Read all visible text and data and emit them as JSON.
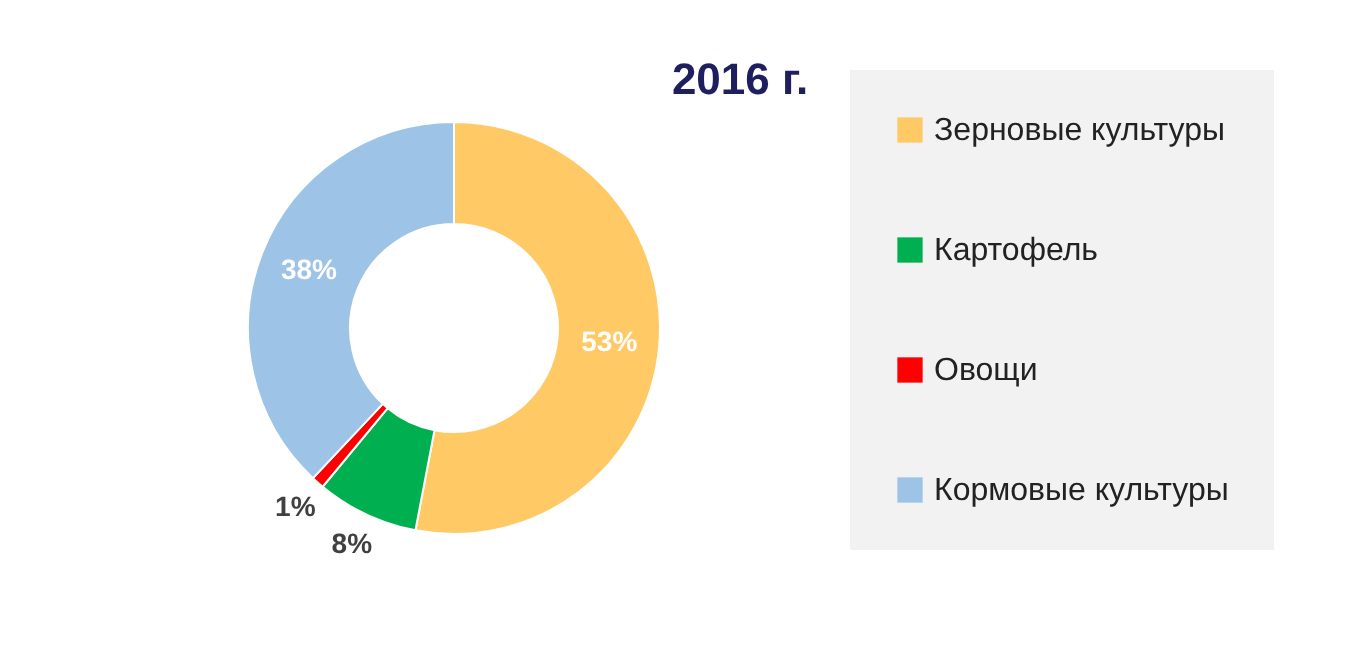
{
  "chart_data": {
    "type": "donut",
    "title": "2016 г.",
    "categories": [
      "Зерновые культуры",
      "Картофель",
      "Овощи",
      "Кормовые культуры"
    ],
    "values": [
      53,
      8,
      1,
      38
    ],
    "value_labels": [
      "53%",
      "8%",
      "1%",
      "38%"
    ],
    "colors": [
      "#ffc966",
      "#00b050",
      "#ff0000",
      "#9dc3e6"
    ],
    "legend": "right"
  }
}
